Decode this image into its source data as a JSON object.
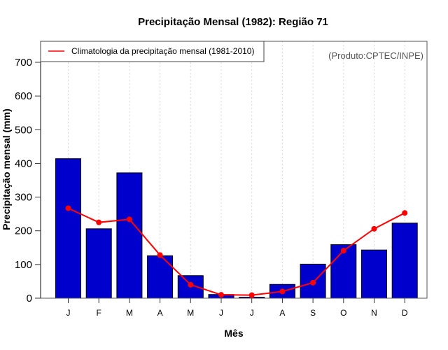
{
  "chart_data": {
    "type": "bar",
    "title": "Precipitação Mensal (1982): Região 71",
    "xlabel": "Mês",
    "ylabel": "Precipitação mensal (mm)",
    "ylim": [
      0,
      760
    ],
    "yticks": [
      0,
      100,
      200,
      300,
      400,
      500,
      600,
      700
    ],
    "categories": [
      "J",
      "F",
      "M",
      "A",
      "M",
      "J",
      "J",
      "A",
      "S",
      "O",
      "N",
      "D"
    ],
    "grid": "vertical dotted",
    "series": [
      {
        "name": "Precipitação mensal 1982",
        "type": "bar",
        "color": "#0000CC",
        "values": [
          414,
          206,
          372,
          126,
          67,
          11,
          3,
          41,
          101,
          159,
          143,
          223
        ]
      },
      {
        "name": "Climatologia da precipitação mensal (1981-2010)",
        "type": "line",
        "color": "#FF0000",
        "values": [
          267,
          225,
          234,
          128,
          40,
          10,
          9,
          20,
          46,
          141,
          206,
          253
        ]
      }
    ],
    "legend": {
      "position": "top-left",
      "entries": [
        "Climatologia da precipitação mensal (1981-2010)"
      ]
    },
    "annotation": "(Produto:CPTEC/INPE)"
  }
}
